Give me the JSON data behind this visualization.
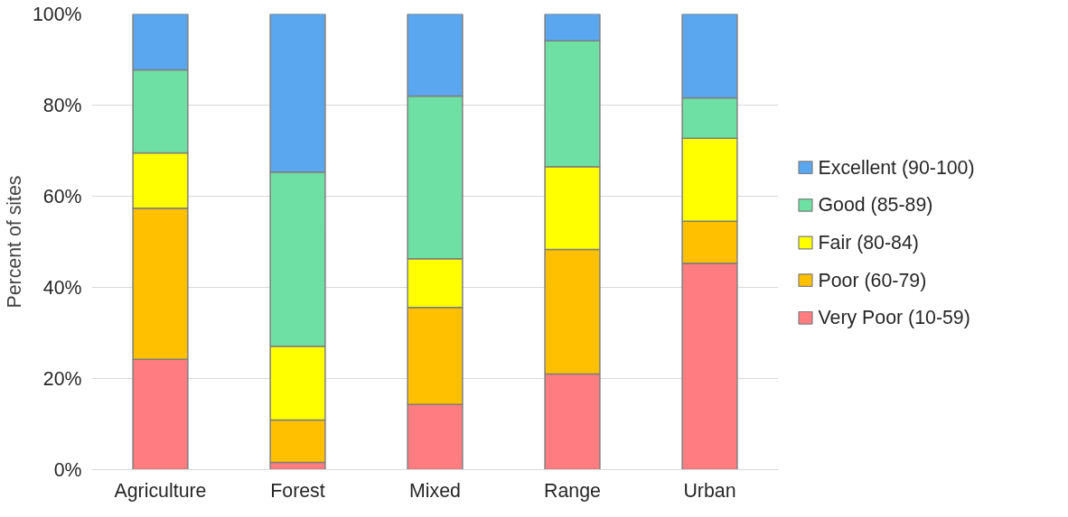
{
  "chart_data": {
    "type": "bar",
    "stacked": true,
    "ylabel": "Percent of sites",
    "categories": [
      "Agriculture",
      "Forest",
      "Mixed",
      "Range",
      "Urban"
    ],
    "series": [
      {
        "name": "Very Poor (10-59)",
        "color": "#ff7c80",
        "values": [
          24.2,
          1.6,
          14.3,
          21.0,
          45.3
        ]
      },
      {
        "name": "Poor (60-79)",
        "color": "#ffc000",
        "values": [
          33.2,
          9.3,
          21.3,
          27.3,
          9.2
        ]
      },
      {
        "name": "Fair (80-84)",
        "color": "#ffff00",
        "values": [
          12.1,
          16.2,
          10.7,
          18.2,
          18.2
        ]
      },
      {
        "name": "Good (85-89)",
        "color": "#6fe0a4",
        "values": [
          18.2,
          38.2,
          35.7,
          27.6,
          8.9
        ]
      },
      {
        "name": "Excellent (90-100)",
        "color": "#5aa7f0",
        "values": [
          12.3,
          34.7,
          18.0,
          5.9,
          18.4
        ]
      }
    ],
    "ylim": [
      0,
      100
    ],
    "yticks": [
      {
        "value": 0,
        "label": "0%"
      },
      {
        "value": 20,
        "label": "20%"
      },
      {
        "value": 40,
        "label": "40%"
      },
      {
        "value": 60,
        "label": "60%"
      },
      {
        "value": 80,
        "label": "80%"
      },
      {
        "value": 100,
        "label": "100%"
      }
    ],
    "grid": "y",
    "legend": "right"
  }
}
